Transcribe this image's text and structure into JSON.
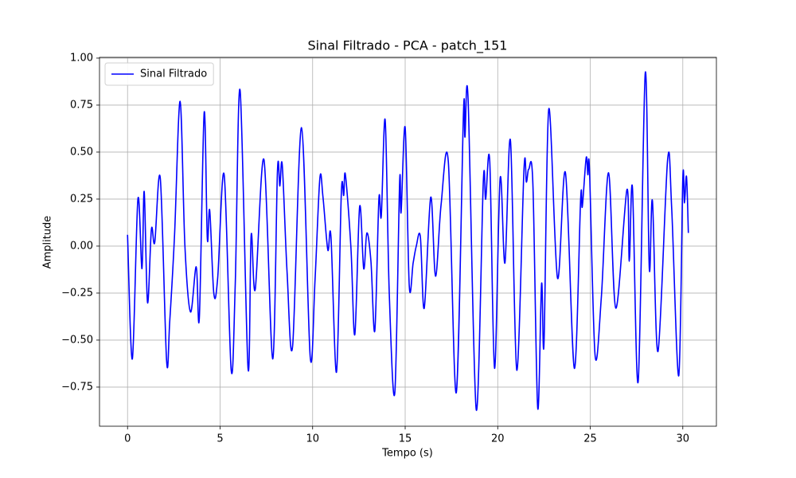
{
  "chart_data": {
    "type": "line",
    "title": "Sinal Filtrado - PCA - patch_151",
    "x_label": "Tempo (s)",
    "y_label": "Amplitude",
    "x": [
      0,
      0.26,
      0.56,
      0.78,
      0.9,
      1.08,
      1.29,
      1.47,
      1.77,
      2.11,
      2.28,
      2.54,
      2.84,
      3.1,
      3.4,
      3.71,
      3.88,
      4.14,
      4.31,
      4.44,
      4.66,
      4.87,
      5.22,
      5.6,
      5.82,
      6.08,
      6.51,
      6.68,
      6.9,
      7.37,
      7.84,
      8.1,
      8.23,
      8.36,
      8.62,
      8.92,
      9.4,
      9.87,
      10.13,
      10.39,
      10.56,
      10.82,
      10.99,
      11.29,
      11.55,
      11.68,
      11.77,
      12.07,
      12.28,
      12.54,
      12.76,
      12.93,
      13.15,
      13.36,
      13.58,
      13.71,
      13.92,
      14.14,
      14.44,
      14.7,
      14.78,
      15.0,
      15.22,
      15.43,
      15.6,
      15.82,
      16.03,
      16.38,
      16.64,
      16.94,
      17.33,
      17.76,
      18.15,
      18.23,
      18.4,
      18.84,
      19.22,
      19.35,
      19.57,
      19.83,
      20.13,
      20.39,
      20.69,
      21.03,
      21.42,
      21.55,
      21.68,
      21.9,
      22.16,
      22.37,
      22.5,
      22.76,
      23.23,
      23.66,
      24.14,
      24.48,
      24.57,
      24.78,
      24.87,
      24.96,
      25.26,
      25.6,
      25.99,
      26.38,
      26.98,
      27.11,
      27.28,
      27.59,
      27.97,
      28.19,
      28.36,
      28.66,
      29.18,
      29.4,
      29.78,
      30.0,
      30.09,
      30.2,
      30.3
    ],
    "series": [
      {
        "name": "Sinal Filtrado",
        "color": "#0000ff",
        "values": [
          0.06,
          -0.6,
          0.25,
          -0.12,
          0.29,
          -0.3,
          0.09,
          0.02,
          0.36,
          -0.61,
          -0.4,
          0.06,
          0.77,
          0.0,
          -0.35,
          -0.11,
          -0.38,
          0.71,
          0.04,
          0.19,
          -0.25,
          -0.17,
          0.38,
          -0.66,
          -0.2,
          0.83,
          -0.65,
          0.06,
          -0.23,
          0.46,
          -0.6,
          0.4,
          0.32,
          0.43,
          -0.14,
          -0.53,
          0.63,
          -0.59,
          -0.18,
          0.36,
          0.26,
          -0.02,
          0.05,
          -0.67,
          0.28,
          0.27,
          0.38,
          -0.01,
          -0.47,
          0.21,
          -0.12,
          0.07,
          -0.08,
          -0.45,
          0.25,
          0.16,
          0.67,
          -0.25,
          -0.78,
          0.34,
          0.18,
          0.63,
          -0.21,
          -0.09,
          0.0,
          0.05,
          -0.33,
          0.26,
          -0.16,
          0.22,
          0.45,
          -0.78,
          0.71,
          0.58,
          0.78,
          -0.87,
          0.34,
          0.25,
          0.45,
          -0.65,
          0.36,
          -0.09,
          0.56,
          -0.66,
          0.41,
          0.34,
          0.41,
          0.33,
          -0.86,
          -0.2,
          -0.52,
          0.73,
          -0.17,
          0.39,
          -0.65,
          0.25,
          0.21,
          0.47,
          0.38,
          0.4,
          -0.58,
          -0.27,
          0.39,
          -0.33,
          0.3,
          -0.08,
          0.31,
          -0.72,
          0.92,
          -0.12,
          0.24,
          -0.56,
          0.46,
          0.2,
          -0.69,
          0.36,
          0.23,
          0.37,
          0.07
        ]
      }
    ],
    "xlim": [
      -1.515,
      31.815
    ],
    "ylim": [
      -0.958,
      1.004
    ],
    "xticks": [
      0,
      5,
      10,
      15,
      20,
      25,
      30
    ],
    "yticks": [
      {
        "value": -0.75,
        "label": "−0.75"
      },
      {
        "value": -0.5,
        "label": "−0.50"
      },
      {
        "value": -0.25,
        "label": "−0.25"
      },
      {
        "value": 0,
        "label": "0.00"
      },
      {
        "value": 0.25,
        "label": "0.25"
      },
      {
        "value": 0.5,
        "label": "0.50"
      },
      {
        "value": 0.75,
        "label": "0.75"
      },
      {
        "value": 1,
        "label": "1.00"
      }
    ],
    "grid": true,
    "legend": "upper left"
  }
}
